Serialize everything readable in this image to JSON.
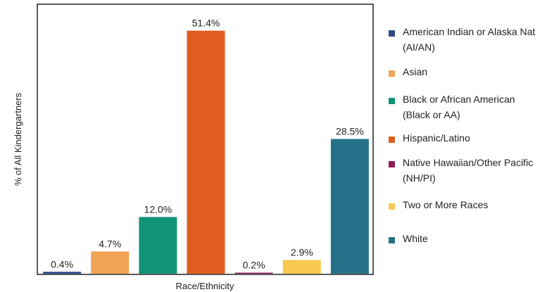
{
  "chart_data": {
    "type": "bar",
    "xlabel": "Race/Ethnicity",
    "ylabel": "% of All Kindergartners",
    "ylim": [
      0,
      57
    ],
    "grid": false,
    "legend_position": "right",
    "bars": [
      {
        "label": "American Indian or Alaska Nat (AI/AN)",
        "value": 0.4,
        "value_label": "0.4%",
        "color": "#2e4a87"
      },
      {
        "label": "Asian",
        "value": 4.7,
        "value_label": "4.7%",
        "color": "#f0a456"
      },
      {
        "label": "Black or African American (Black or AA)",
        "value": 12.0,
        "value_label": "12.0%",
        "color": "#109477"
      },
      {
        "label": "Hispanic/Latino",
        "value": 51.4,
        "value_label": "51.4%",
        "color": "#df5e1f"
      },
      {
        "label": "Native Hawaiian/Other Pacific (NH/PI)",
        "value": 0.2,
        "value_label": "0.2%",
        "color": "#8b1f57"
      },
      {
        "label": "Two or More Races",
        "value": 2.9,
        "value_label": "2.9%",
        "color": "#f7c94f"
      },
      {
        "label": "White",
        "value": 28.5,
        "value_label": "28.5%",
        "color": "#26718a"
      }
    ]
  }
}
